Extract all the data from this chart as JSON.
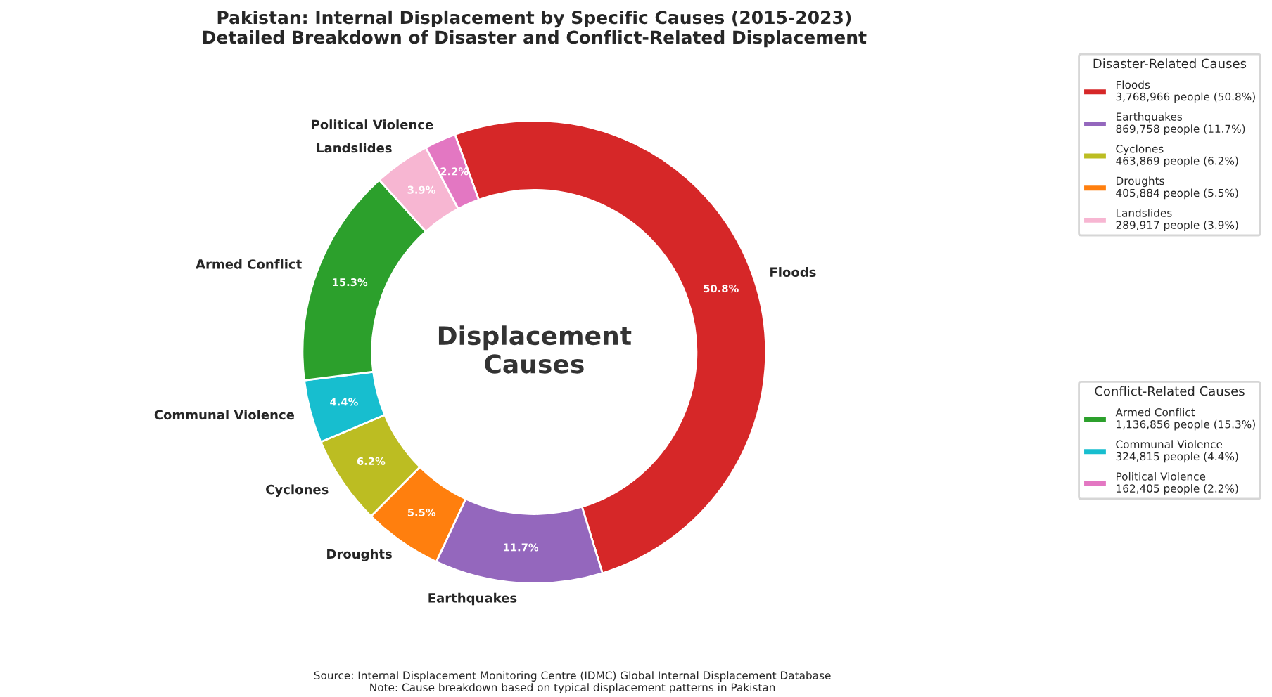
{
  "chart_data": {
    "type": "donut",
    "title": "Pakistan: Internal Displacement by Specific Causes (2015-2023)\nDetailed Breakdown of Disaster and Conflict-Related Displacement",
    "categories": [
      "Floods",
      "Earthquakes",
      "Droughts",
      "Cyclones",
      "Communal Violence",
      "Armed Conflict",
      "Landslides",
      "Political Violence"
    ],
    "values": [
      50.8,
      11.7,
      5.5,
      6.2,
      4.4,
      15.3,
      3.9,
      2.2
    ],
    "colors": [
      "#d62728",
      "#9467bd",
      "#ff7f0e",
      "#bcbd22",
      "#17becf",
      "#2ca02c",
      "#f7b6d2",
      "#e377c2"
    ],
    "value_labels": [
      "50.8%",
      "11.7%",
      "5.5%",
      "6.2%",
      "4.4%",
      "15.3%",
      "3.9%",
      "2.2%"
    ],
    "annotations": [
      "Displacement\nCauses",
      "Disaster-Related Causes",
      {
        "text": "Floods\n3,768,966 people (50.8%)",
        "x": "Floods"
      },
      {
        "text": "Earthquakes\n869,758 people (11.7%)",
        "x": "Earthquakes"
      },
      {
        "text": "Cyclones\n463,869 people (6.2%)",
        "x": "Cyclones"
      },
      {
        "text": "Droughts\n405,884 people (5.5%)",
        "x": "Droughts"
      },
      {
        "text": "Landslides\n289,917 people (3.9%)",
        "x": "Landslides"
      },
      "Conflict-Related Causes",
      {
        "text": "Armed Conflict\n1,136,856 people (15.3%)",
        "x": "Armed Conflict"
      },
      {
        "text": "Communal Violence\n324,815 people (4.4%)",
        "x": "Communal Violence"
      },
      {
        "text": "Political Violence\n162,405 people (2.2%)",
        "x": "Political Violence"
      },
      "Source: Internal Displacement Monitoring Centre (IDMC) Global Internal Displacement Database\nNote: Cause breakdown based on typical displacement patterns in Pakistan"
    ]
  }
}
